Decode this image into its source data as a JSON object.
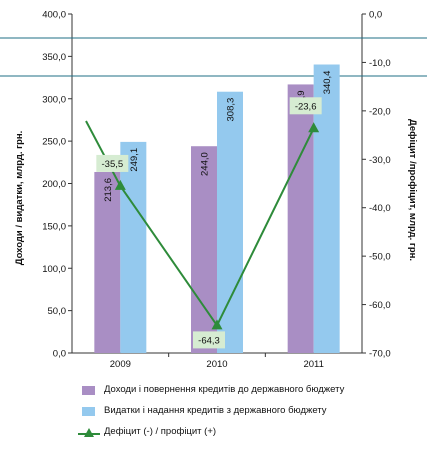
{
  "chart_data": {
    "type": "bar+line",
    "categories": [
      "2009",
      "2010",
      "2011"
    ],
    "series": [
      {
        "name": "Доходи і повернення кредитів до державного бюджету",
        "type": "bar",
        "axis": "left",
        "color": "#a98ec4",
        "values": [
          213.6,
          244.0,
          316.9
        ],
        "labels": [
          "213,6",
          "244,0",
          "316,9"
        ]
      },
      {
        "name": "Видатки і надання кредитів з державного бюджету",
        "type": "bar",
        "axis": "left",
        "color": "#94c9ee",
        "values": [
          249.1,
          308.3,
          340.4
        ],
        "labels": [
          "249,1",
          "308,3",
          "340,4"
        ]
      },
      {
        "name": "Дефіцит (-) / профіцит (+)",
        "type": "line",
        "axis": "right",
        "color": "#2e8b3a",
        "values": [
          -35.5,
          -64.3,
          -23.6
        ],
        "labels": [
          "-35,5",
          "-64,3",
          "-23,6"
        ]
      }
    ],
    "ylabel_left": "Доходи / видатки, млрд. грн.",
    "ylabel_right": "Дефіцит /профіцит,  млрд. грн.",
    "ylim_left": [
      0,
      400
    ],
    "ylim_right": [
      -70,
      0
    ],
    "yticks_left": [
      "0,0",
      "50,0",
      "100,0",
      "150,0",
      "200,0",
      "250,0",
      "300,0",
      "350,0",
      "400,0"
    ],
    "yticks_right": [
      "0,0",
      "-10,0",
      "-20,0",
      "-30,0",
      "-40,0",
      "-50,0",
      "-60,0",
      "-70,0"
    ],
    "legend_position": "bottom",
    "grid": false
  },
  "legend": {
    "income": "Доходи і повернення кредитів до державного бюджету",
    "expense": "Видатки і надання кредитів з державного бюджету",
    "deficit": "Дефіцит (-) / профіцит (+)"
  },
  "colors": {
    "income": "#a98ec4",
    "expense": "#94c9ee",
    "deficit": "#2e8b3a",
    "frame": "#1f6f86",
    "label_box": "#d6ecd2"
  }
}
